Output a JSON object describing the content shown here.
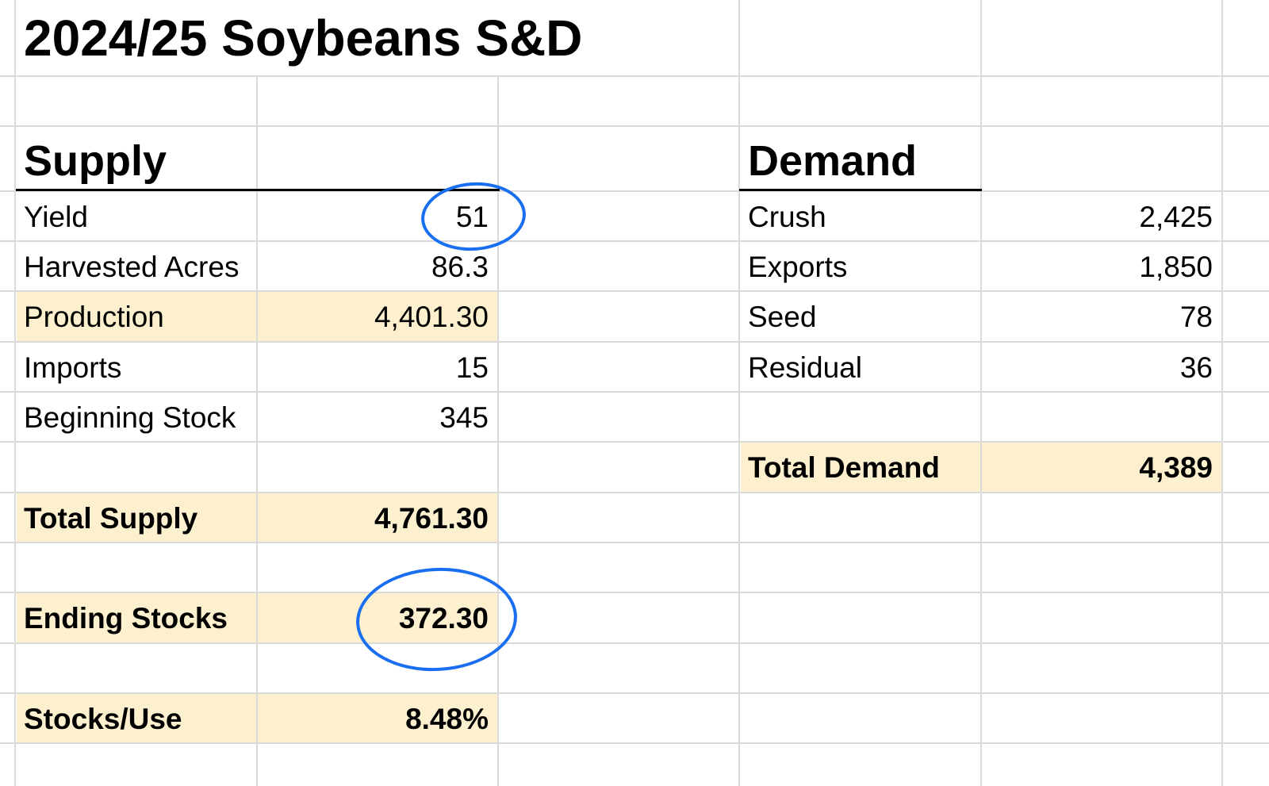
{
  "title": "2024/25 Soybeans S&D",
  "supply": {
    "header": "Supply",
    "rows": [
      {
        "label": "Yield",
        "value": "51"
      },
      {
        "label": "Harvested Acres",
        "value": "86.3"
      },
      {
        "label": "Production",
        "value": "4,401.30"
      },
      {
        "label": "Imports",
        "value": "15"
      },
      {
        "label": "Beginning Stock",
        "value": "345"
      }
    ],
    "total_label": "Total Supply",
    "total_value": "4,761.30",
    "ending_label": "Ending Stocks",
    "ending_value": "372.30",
    "ratio_label": "Stocks/Use",
    "ratio_value": "8.48%"
  },
  "demand": {
    "header": "Demand",
    "rows": [
      {
        "label": "Crush",
        "value": "2,425"
      },
      {
        "label": "Exports",
        "value": "1,850"
      },
      {
        "label": "Seed",
        "value": "78"
      },
      {
        "label": "Residual",
        "value": "36"
      }
    ],
    "total_label": "Total Demand",
    "total_value": "4,389"
  },
  "colors": {
    "highlight": "#fdf0cf",
    "annotation": "#1a6ef0",
    "gridline": "#dadada"
  }
}
